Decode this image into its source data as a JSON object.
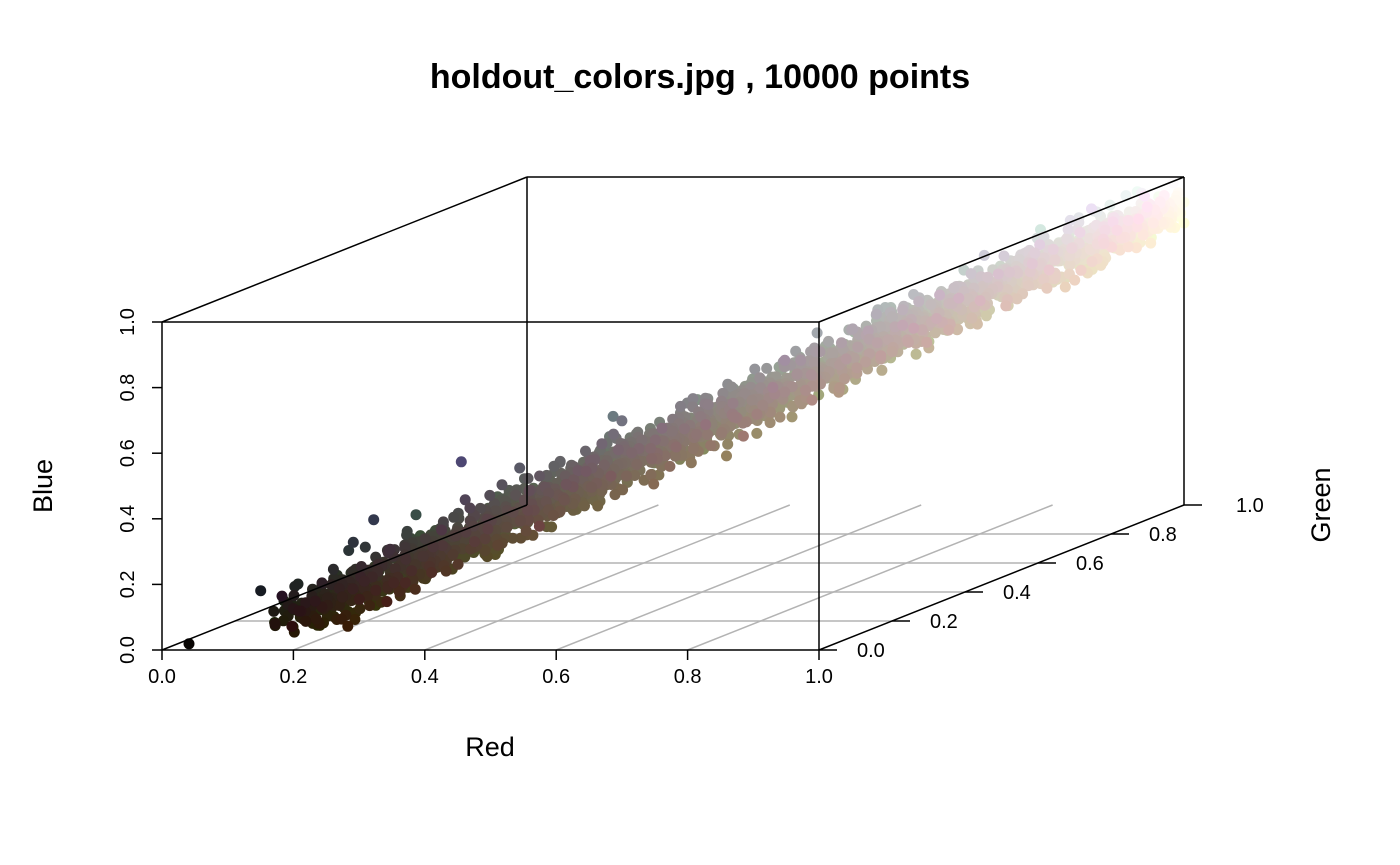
{
  "chart_data": {
    "type": "scatter",
    "subtype": "3d-scatter",
    "title": "holdout_colors.jpg , 10000 points",
    "xlabel": "Red",
    "ylabel": "Green",
    "zlabel": "Blue",
    "xlim": [
      0,
      1
    ],
    "ylim": [
      0,
      1
    ],
    "zlim": [
      0,
      1
    ],
    "x_ticks": [
      "0.0",
      "0.2",
      "0.4",
      "0.6",
      "0.8",
      "1.0"
    ],
    "y_ticks": [
      "0.0",
      "0.2",
      "0.4",
      "0.6",
      "0.8",
      "1.0"
    ],
    "z_ticks": [
      "0.0",
      "0.2",
      "0.4",
      "0.6",
      "0.8",
      "1.0"
    ],
    "grid": "floor",
    "point_count": 10000,
    "point_color": "rgb(red, green, blue)",
    "points": [
      [
        0.03,
        0.02,
        0.01
      ],
      [
        0.17,
        0.05,
        0.05
      ],
      [
        0.18,
        0.2,
        0.24
      ],
      [
        0.2,
        0.22,
        0.3
      ],
      [
        0.22,
        0.3,
        0.28
      ],
      [
        0.3,
        0.28,
        0.45
      ],
      [
        0.35,
        0.35,
        0.4
      ],
      [
        0.4,
        0.33,
        0.35
      ],
      [
        0.42,
        0.48,
        0.5
      ],
      [
        0.45,
        0.45,
        0.5
      ],
      [
        0.5,
        0.48,
        0.44
      ],
      [
        0.53,
        0.5,
        0.52
      ],
      [
        0.55,
        0.5,
        0.5
      ],
      [
        0.58,
        0.58,
        0.6
      ],
      [
        0.62,
        0.55,
        0.45
      ],
      [
        0.68,
        0.62,
        0.6
      ],
      [
        0.72,
        0.7,
        0.72
      ],
      [
        0.8,
        0.78,
        0.76
      ],
      [
        0.85,
        0.82,
        0.8
      ],
      [
        0.9,
        0.88,
        0.85
      ],
      [
        0.95,
        0.94,
        0.92
      ],
      [
        1.0,
        0.98,
        0.95
      ]
    ]
  }
}
